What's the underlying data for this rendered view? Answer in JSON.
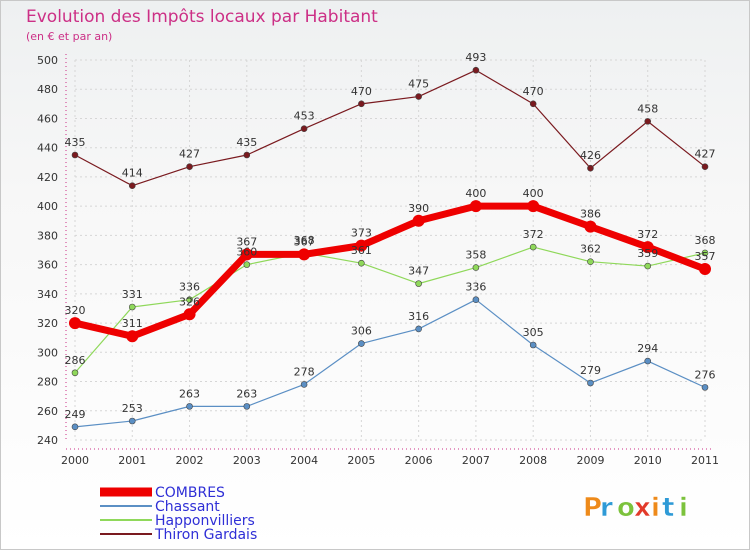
{
  "chart_data": {
    "type": "line",
    "title": "Evolution des Impôts locaux par Habitant",
    "subtitle": "(en € et par an)",
    "xlabel": "",
    "ylabel": "",
    "ylim": [
      240,
      500
    ],
    "yticks": [
      240,
      260,
      280,
      300,
      320,
      340,
      360,
      380,
      400,
      420,
      440,
      460,
      480,
      500
    ],
    "categories": [
      "2000",
      "2001",
      "2002",
      "2003",
      "2004",
      "2005",
      "2006",
      "2007",
      "2008",
      "2009",
      "2010",
      "2011"
    ],
    "grid": true,
    "legend_position": "bottom-left",
    "series": [
      {
        "name": "Thiron Gardais",
        "color": "#7a1a1f",
        "values": [
          435,
          414,
          427,
          435,
          453,
          470,
          475,
          493,
          470,
          426,
          458,
          427
        ]
      },
      {
        "name": "Chassant",
        "color": "#5b8fc4",
        "values": [
          249,
          253,
          263,
          263,
          278,
          306,
          316,
          336,
          305,
          279,
          294,
          276
        ]
      },
      {
        "name": "Happonvilliers",
        "color": "#8fd85a",
        "values": [
          286,
          331,
          336,
          360,
          368,
          361,
          347,
          358,
          372,
          362,
          359,
          368
        ]
      },
      {
        "name": "COMBRES",
        "color": "#ee0000",
        "values": [
          320,
          311,
          326,
          367,
          367,
          373,
          390,
          400,
          400,
          386,
          372,
          357
        ]
      }
    ],
    "data_labels": [
      {
        "series": "Thiron Gardais",
        "labels": [
          "435",
          "414",
          "427",
          "435",
          "453",
          "470",
          "475",
          "493",
          "470",
          "426",
          "458",
          "427"
        ]
      },
      {
        "series": "Chassant",
        "labels": [
          "249",
          "253",
          "263",
          "263",
          "278",
          "306",
          "316",
          "336",
          "305",
          "279",
          "294",
          "276"
        ]
      },
      {
        "series": "Happonvilliers",
        "labels": [
          "286",
          "331",
          "336",
          "360",
          "368",
          "361",
          "347",
          "358",
          "372",
          "362",
          "359",
          "368"
        ]
      },
      {
        "series": "COMBRES",
        "labels": [
          "320",
          "311",
          "326",
          "367",
          "367",
          "373",
          "390",
          "400",
          "400",
          "386",
          "372",
          "357"
        ]
      }
    ]
  },
  "legend": {
    "entries": [
      "COMBRES",
      "Chassant",
      "Happonvilliers",
      "Thiron Gardais"
    ]
  },
  "logo": {
    "text": "Proxiti",
    "colors": [
      "#ee8a1a",
      "#2e9ad6",
      "#7cc23c",
      "#e23a2a"
    ]
  }
}
